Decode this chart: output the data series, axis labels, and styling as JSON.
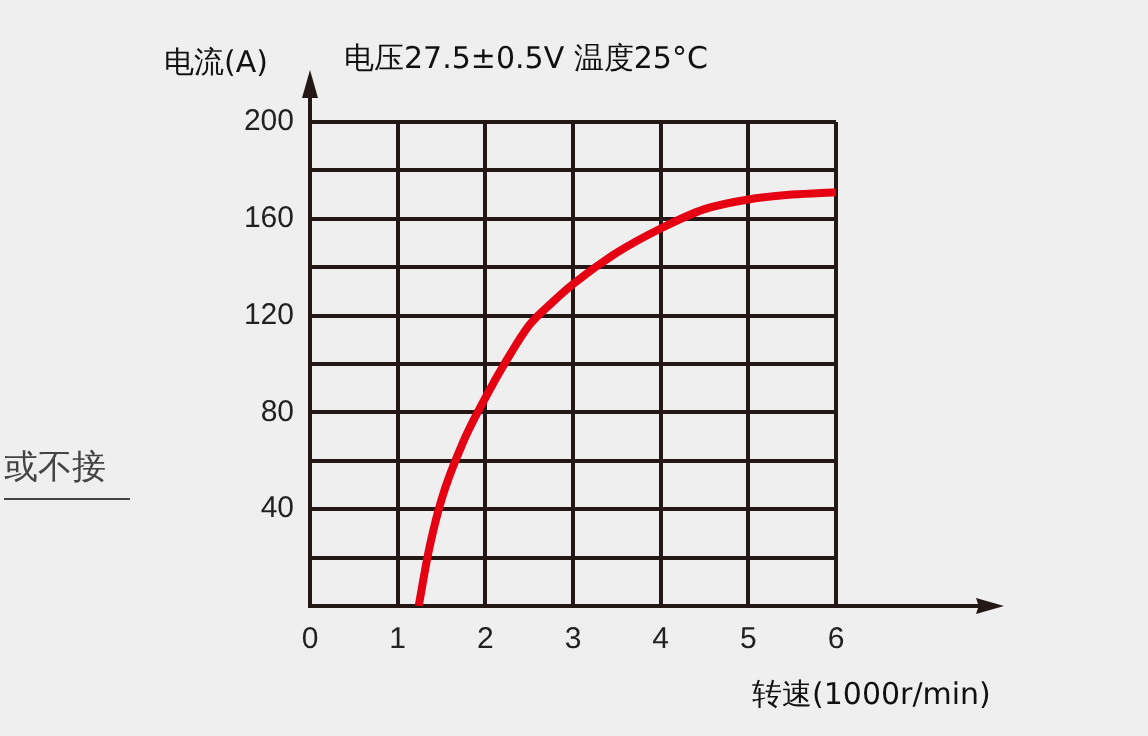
{
  "chart_data": {
    "type": "line",
    "title": "电压27.5±0.5V 温度25°C",
    "xlabel": "转速(1000r/min)",
    "ylabel": "电流(A)",
    "annotations": [
      "或不接"
    ],
    "x": [
      1.24,
      1.35,
      1.5,
      1.75,
      2,
      2.25,
      2.5,
      2.75,
      3,
      3.5,
      4,
      4.5,
      5,
      5.5,
      6
    ],
    "series": [
      {
        "color": "#e50012",
        "values": [
          0,
          22,
          44,
          68,
          86,
          102,
          116,
          125,
          133,
          146,
          156,
          164,
          168,
          170,
          171
        ]
      }
    ],
    "xlim": [
      0,
      6
    ],
    "xticks": [
      0,
      1,
      2,
      3,
      4,
      5,
      6
    ],
    "ylim": [
      0,
      200
    ],
    "yticks": [
      {
        "value": 20,
        "label": null
      },
      40,
      {
        "value": 60,
        "label": null
      },
      80,
      {
        "value": 100,
        "label": null
      },
      120,
      {
        "value": 140,
        "label": null
      },
      160,
      {
        "value": 180,
        "label": null
      },
      200
    ],
    "grid": true,
    "marker": "none"
  }
}
